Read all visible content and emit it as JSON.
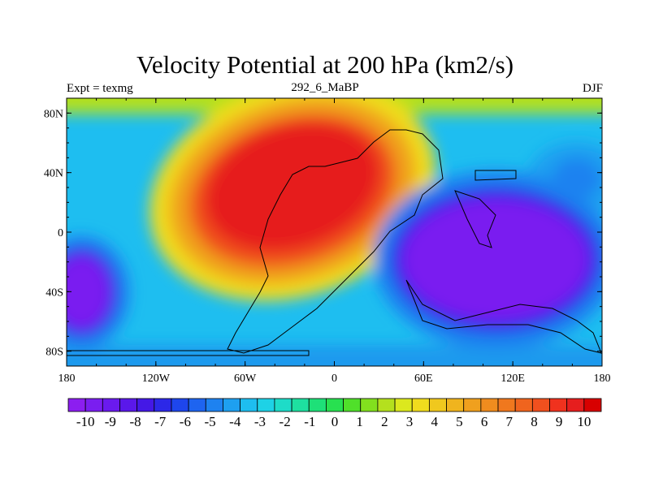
{
  "title": "Velocity Potential at 200 hPa (km2/s)",
  "experiment": "Expt = texmg",
  "run_id": "292_6_MaBP",
  "season": "DJF",
  "map": {
    "x_ticks": [
      "180",
      "120W",
      "60W",
      "0",
      "60E",
      "120E",
      "180"
    ],
    "y_ticks": [
      "80N",
      "40N",
      "0",
      "40S",
      "80S"
    ],
    "lon_values": [
      -180,
      -120,
      -60,
      0,
      60,
      120,
      180
    ],
    "lat_values": [
      80,
      40,
      0,
      -40,
      -80
    ]
  },
  "colorbar": {
    "labels": [
      "-10",
      "-9",
      "-8",
      "-7",
      "-6",
      "-5",
      "-4",
      "-3",
      "-2",
      "-1",
      "0",
      "1",
      "2",
      "3",
      "4",
      "5",
      "6",
      "7",
      "8",
      "9",
      "10"
    ],
    "colors": [
      "#8c1ef0",
      "#7a1ef0",
      "#6a1aee",
      "#5a18ea",
      "#4418e6",
      "#2c28e8",
      "#1e46ec",
      "#1e64f0",
      "#1e82f0",
      "#1ea0f0",
      "#1ebef0",
      "#1ed2e6",
      "#1edcc8",
      "#1ee0a0",
      "#1ee078",
      "#28e050",
      "#50e02a",
      "#82e01e",
      "#b4e01e",
      "#dce81e",
      "#f0dc1e",
      "#f0c81e",
      "#f0b41e",
      "#f0a01e",
      "#f08c1e",
      "#f0781e",
      "#f0641e",
      "#f0501e",
      "#f0321e",
      "#e61e1e",
      "#d80000"
    ]
  }
}
